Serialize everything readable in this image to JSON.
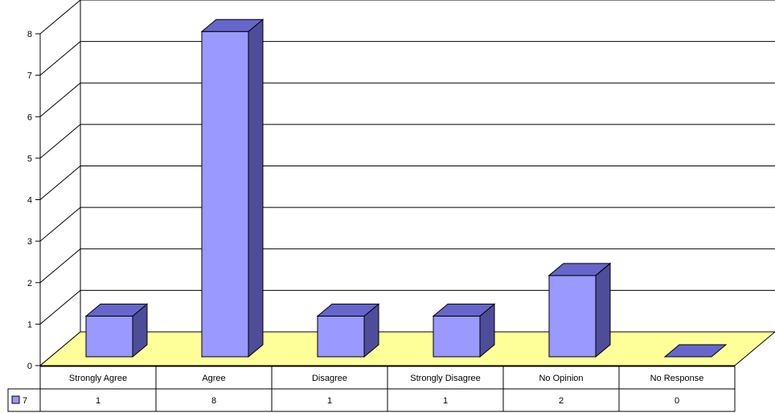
{
  "chart_data": {
    "type": "bar",
    "categories": [
      "Strongly Agree",
      "Agree",
      "Disagree",
      "Strongly Disagree",
      "No Opinion",
      "No Response"
    ],
    "series": [
      {
        "name": "7",
        "values": [
          1,
          8,
          1,
          1,
          2,
          0
        ]
      }
    ],
    "yticks": [
      "0",
      "1",
      "2",
      "3",
      "4",
      "5",
      "6",
      "7",
      "8"
    ],
    "ylim": [
      0,
      8
    ],
    "grid": true,
    "legend": "table-left",
    "data_table": true,
    "colors": {
      "bar_front": "#9999ff",
      "bar_top": "#6666cc",
      "bar_side": "#4d4d99",
      "floor": "#ffff99",
      "grid": "#000000"
    }
  }
}
